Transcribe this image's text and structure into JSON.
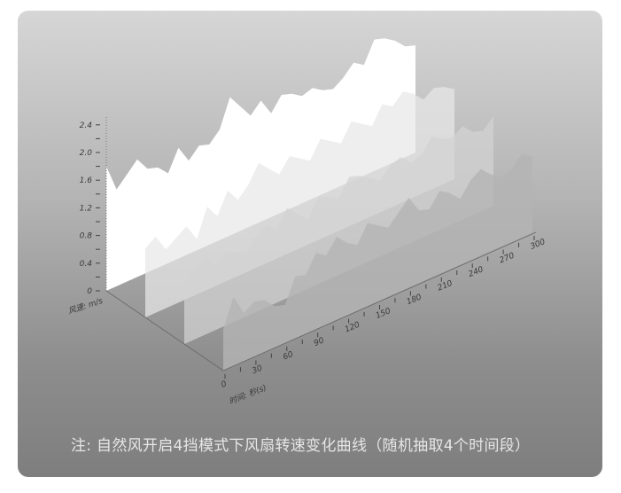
{
  "chart_data": {
    "type": "area",
    "title": "",
    "xlabel": "时间: 秒(s)",
    "ylabel": "风速: m/s",
    "x": [
      0,
      10,
      20,
      30,
      40,
      50,
      60,
      70,
      80,
      90,
      100,
      110,
      120,
      130,
      140,
      150,
      160,
      170,
      180,
      190,
      200,
      210,
      220,
      230,
      240,
      250,
      260,
      270,
      280,
      290,
      300
    ],
    "xlim": [
      0,
      300
    ],
    "ylim": [
      0,
      2.4
    ],
    "x_tick_labels": [
      "0",
      "30",
      "60",
      "90",
      "120",
      "150",
      "180",
      "210",
      "240",
      "270",
      "300"
    ],
    "y_tick_labels": [
      "0",
      "0.4",
      "0.8",
      "1.2",
      "1.6",
      "2.0",
      "2.4"
    ],
    "grid": false,
    "projection": "3d-waterfall",
    "series": [
      {
        "values": [
          1.8,
          1.4,
          1.55,
          1.7,
          1.5,
          1.45,
          1.3,
          1.6,
          1.35,
          1.5,
          1.45,
          1.6,
          2.0,
          1.8,
          1.6,
          1.75,
          1.5,
          1.7,
          1.65,
          1.55,
          1.6,
          1.5,
          1.45,
          1.55,
          1.7,
          1.6,
          1.9,
          1.85,
          1.75,
          1.6,
          1.55
        ],
        "color": "#ffffff"
      },
      {
        "values": [
          1.0,
          1.1,
          0.85,
          0.95,
          1.05,
          0.8,
          1.2,
          1.0,
          1.3,
          1.1,
          1.25,
          1.5,
          1.35,
          1.2,
          1.4,
          1.3,
          1.2,
          1.45,
          1.35,
          1.25,
          1.5,
          1.4,
          1.3,
          1.55,
          1.45,
          1.6,
          1.5,
          1.35,
          1.45,
          1.4,
          1.3
        ],
        "color": "#e8e8e8"
      },
      {
        "values": [
          0.9,
          1.0,
          1.1,
          0.95,
          1.05,
          1.0,
          0.9,
          1.1,
          1.2,
          1.05,
          1.3,
          1.15,
          1.0,
          1.25,
          1.2,
          1.1,
          1.35,
          1.3,
          1.2,
          1.1,
          1.25,
          1.3,
          1.15,
          1.2,
          1.4,
          1.3,
          1.25,
          1.35,
          1.2,
          1.15,
          1.3
        ],
        "color": "#d2d2d2"
      },
      {
        "values": [
          0.6,
          1.0,
          0.7,
          0.8,
          0.75,
          0.6,
          0.55,
          0.9,
          0.85,
          1.1,
          1.0,
          1.2,
          1.05,
          0.95,
          1.2,
          1.1,
          1.0,
          1.15,
          1.3,
          1.05,
          1.0,
          1.2,
          1.1,
          0.95,
          1.15,
          1.25,
          1.1,
          1.0,
          1.05,
          1.2,
          1.1
        ],
        "color": "#b4b4b4"
      }
    ]
  },
  "caption": "注: 自然风开启4挡模式下风扇转速变化曲线（随机抽取4个时间段）"
}
